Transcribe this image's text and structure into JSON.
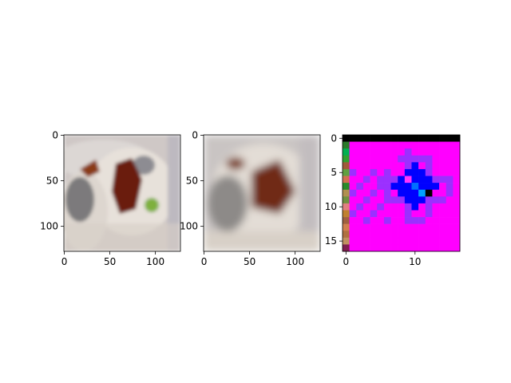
{
  "chart_data": [
    {
      "type": "image",
      "description_visible": "blurred photo of dumplings with sauce",
      "x_ticks": [
        "0",
        "50",
        "100"
      ],
      "y_ticks": [
        "0",
        "50",
        "100"
      ],
      "xlim": [
        0,
        127
      ],
      "ylim": [
        127,
        0
      ]
    },
    {
      "type": "image",
      "x_ticks": [
        "0",
        "50",
        "100"
      ],
      "y_ticks": [
        "0",
        "50",
        "100"
      ],
      "xlim": [
        0,
        127
      ],
      "ylim": [
        127,
        0
      ]
    },
    {
      "type": "heatmap",
      "x_ticks": [
        "0",
        "10"
      ],
      "y_ticks": [
        "0",
        "5",
        "10",
        "15"
      ],
      "xlim": [
        0,
        17
      ],
      "ylim": [
        17,
        0
      ]
    }
  ],
  "colors": {
    "plate": "#e9e4df",
    "sauce": "#7a2a12",
    "magenta": "#ff00ff",
    "blue": "#0000ff",
    "purple": "#9b30ff",
    "black": "#000000"
  }
}
